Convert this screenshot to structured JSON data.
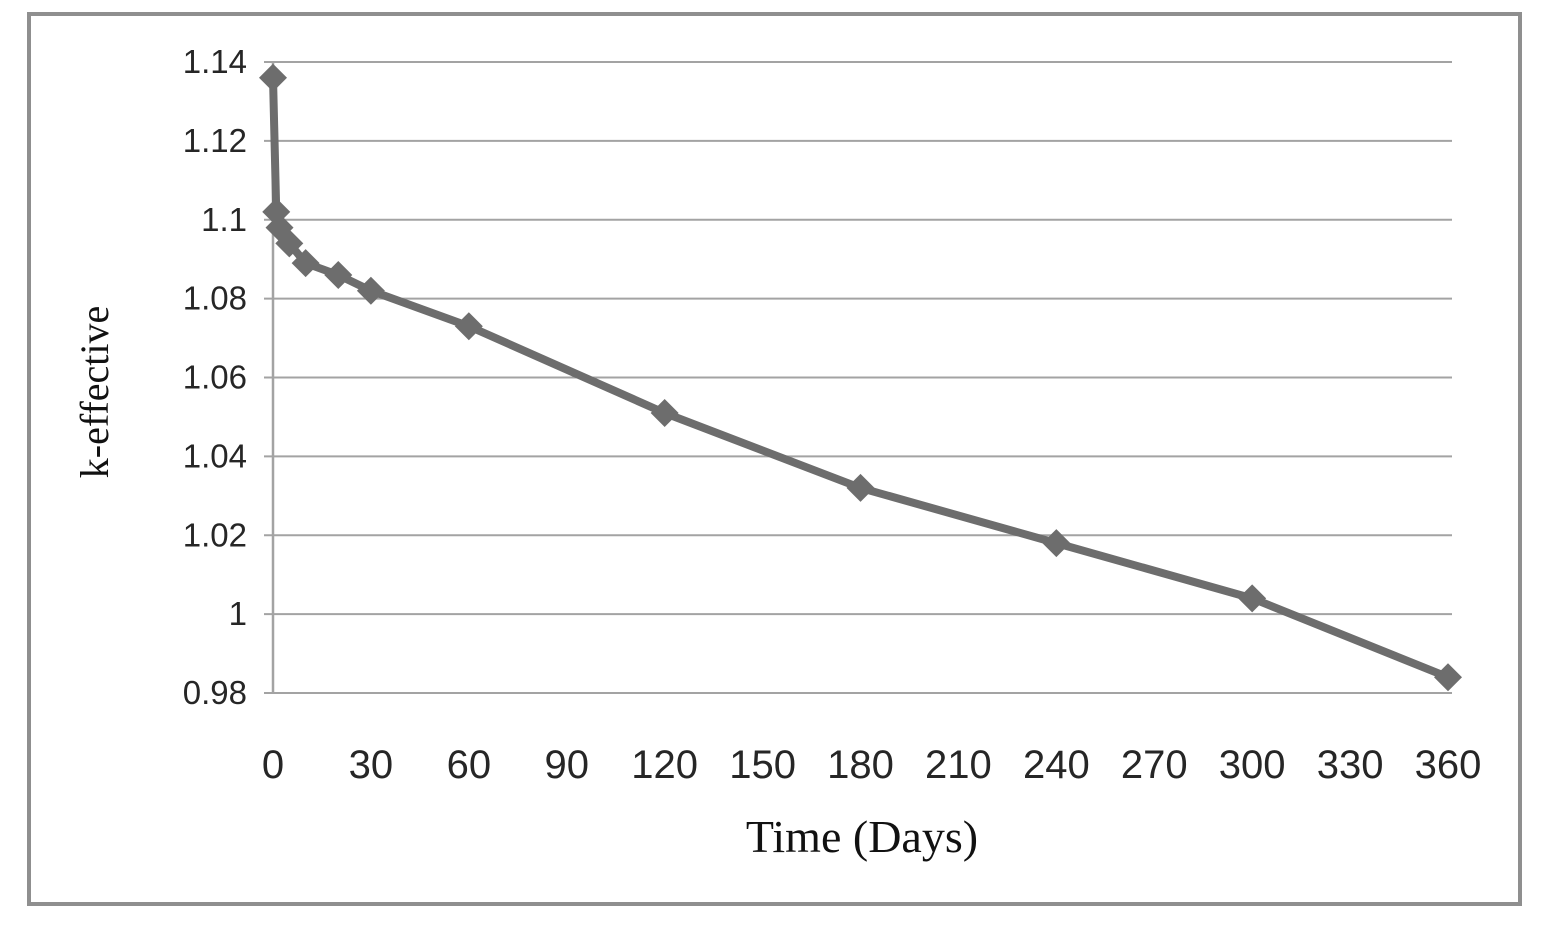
{
  "chart_data": {
    "type": "line",
    "title": "",
    "xlabel": "Time (Days)",
    "ylabel": "k-effective",
    "series": [
      {
        "name": "k-effective",
        "x": [
          0,
          1,
          2,
          5,
          10,
          20,
          30,
          60,
          120,
          180,
          240,
          300,
          360
        ],
        "y": [
          1.136,
          1.102,
          1.098,
          1.094,
          1.089,
          1.086,
          1.082,
          1.073,
          1.051,
          1.032,
          1.018,
          1.004,
          0.984
        ]
      }
    ],
    "xlim": [
      0,
      360
    ],
    "ylim": [
      0.98,
      1.14
    ],
    "x_ticks": [
      0,
      30,
      60,
      90,
      120,
      150,
      180,
      210,
      240,
      270,
      300,
      330,
      360
    ],
    "y_ticks": [
      "0.98",
      "1",
      "1.02",
      "1.04",
      "1.06",
      "1.08",
      "1.1",
      "1.12",
      "1.14"
    ],
    "grid": "horizontal",
    "legend_position": "none",
    "marker": "diamond",
    "line_color": "#6d6d6d",
    "marker_color": "#6d6d6d",
    "gridline_color": "#a3a3a3",
    "axis_line_color": "#a3a3a3",
    "frame_border_color": "#8f8f8f"
  }
}
